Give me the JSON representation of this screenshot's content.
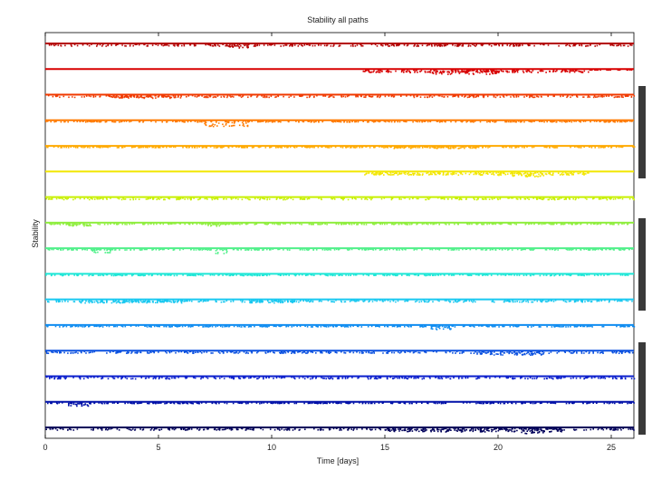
{
  "chart_data": {
    "type": "scatter",
    "title": "Stability all paths",
    "xlabel": "Time [days]",
    "ylabel": "Stability",
    "xlim": [
      0,
      26
    ],
    "x_ticks": [
      "0",
      "5",
      "10",
      "15",
      "20",
      "25"
    ],
    "grid": false,
    "legend": "none",
    "series": [
      {
        "color": "#b40000",
        "dips": [
          [
            0,
            26,
            2
          ],
          [
            8,
            9,
            4
          ]
        ]
      },
      {
        "color": "#d80000",
        "dips": [
          [
            14,
            24,
            3
          ],
          [
            17,
            20,
            5
          ],
          [
            24,
            26,
            0
          ]
        ]
      },
      {
        "color": "#f03a00",
        "dips": [
          [
            0,
            26,
            2
          ],
          [
            3,
            6,
            3
          ]
        ]
      },
      {
        "color": "#ff7a00",
        "dips": [
          [
            0,
            26,
            1
          ],
          [
            7,
            9,
            6
          ]
        ]
      },
      {
        "color": "#ffaa00",
        "dips": [
          [
            0,
            26,
            1
          ],
          [
            15,
            19,
            2
          ]
        ]
      },
      {
        "color": "#f2e600",
        "dips": [
          [
            14,
            24,
            3
          ],
          [
            20,
            22,
            5
          ]
        ]
      },
      {
        "color": "#c8f000",
        "dips": [
          [
            0,
            26,
            2
          ]
        ]
      },
      {
        "color": "#90ee40",
        "dips": [
          [
            0,
            26,
            1
          ],
          [
            1,
            2,
            3
          ],
          [
            7,
            8,
            3
          ]
        ]
      },
      {
        "color": "#50f08a",
        "dips": [
          [
            0,
            26,
            1
          ],
          [
            2,
            3,
            4
          ],
          [
            7.5,
            8,
            5
          ]
        ]
      },
      {
        "color": "#1ee6d6",
        "dips": [
          [
            0,
            26,
            1
          ]
        ]
      },
      {
        "color": "#18c8f0",
        "dips": [
          [
            0,
            26,
            2
          ],
          [
            1.5,
            6,
            3
          ],
          [
            9,
            11,
            3
          ]
        ]
      },
      {
        "color": "#0f8cf0",
        "dips": [
          [
            0,
            26,
            1
          ],
          [
            17,
            18,
            4
          ]
        ]
      },
      {
        "color": "#0a50e0",
        "dips": [
          [
            0,
            26,
            2
          ],
          [
            19,
            22,
            4
          ]
        ]
      },
      {
        "color": "#0a1ecc",
        "dips": [
          [
            0,
            26,
            2
          ]
        ]
      },
      {
        "color": "#0010a8",
        "dips": [
          [
            0,
            26,
            1
          ],
          [
            1,
            2,
            4
          ]
        ]
      },
      {
        "color": "#00005a",
        "dips": [
          [
            0,
            26,
            2
          ],
          [
            15,
            23,
            4
          ],
          [
            21,
            22,
            6
          ]
        ]
      }
    ]
  }
}
